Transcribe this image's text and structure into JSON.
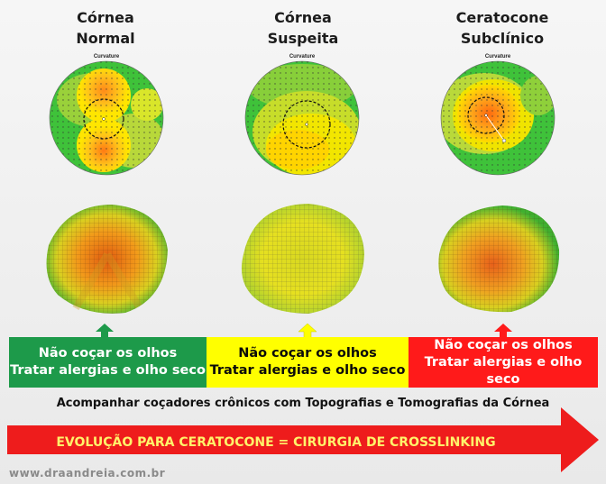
{
  "columns": [
    {
      "title_line1": "Córnea",
      "title_line2": "Normal",
      "map_label": "Curvature"
    },
    {
      "title_line1": "Córnea",
      "title_line2": "Suspeita",
      "map_label": "Curvature"
    },
    {
      "title_line1": "Ceratocone",
      "title_line2": "Subclínico",
      "map_label": "Curvature"
    }
  ],
  "bands": [
    {
      "line1": "Não coçar os olhos",
      "line2": "Tratar alergias e olho seco",
      "color": "#1d9a4a",
      "text_color": "#ffffff"
    },
    {
      "line1": "Não coçar os olhos",
      "line2": "Tratar alergias e olho seco",
      "color": "#ffff00",
      "text_color": "#0a0a0a"
    },
    {
      "line1": "Não coçar os olhos",
      "line2": "Tratar alergias e olho seco",
      "color": "#ff1a1a",
      "text_color": "#ffffff"
    }
  ],
  "follow_up_text": "Acompanhar coçadores crônicos com Topografias e Tomografias da Córnea",
  "evolution_text": "EVOLUÇÃO PARA CERATOCONE = CIRURGIA DE CROSSLINKING",
  "website": "www.draandreia.com.br",
  "colors": {
    "green": "#1d9a4a",
    "yellow": "#ffff00",
    "red": "#ff1a1a",
    "arrow_red": "#ee1c1c"
  }
}
